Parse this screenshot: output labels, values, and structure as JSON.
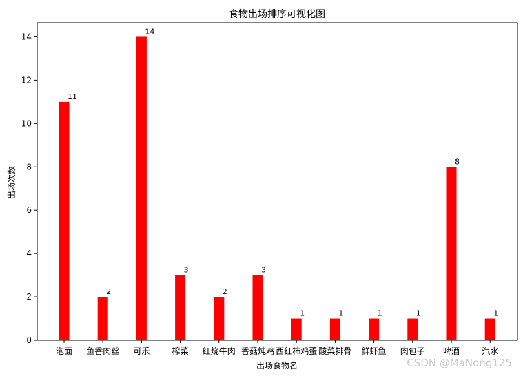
{
  "chart_data": {
    "type": "bar",
    "title": "食物出场排序可视化图",
    "xlabel": "出场食物名",
    "ylabel": "出场次数",
    "categories": [
      "泡面",
      "鱼香肉丝",
      "可乐",
      "榨菜",
      "红烧牛肉",
      "香菇炖鸡",
      "西红柿鸡蛋",
      "酸菜排骨",
      "鲜虾鱼",
      "肉包子",
      "啤酒",
      "汽水"
    ],
    "values": [
      11,
      2,
      14,
      3,
      2,
      3,
      1,
      1,
      1,
      1,
      8,
      1
    ],
    "ylim": [
      0,
      14.65
    ],
    "yticks": [
      0,
      2,
      4,
      6,
      8,
      10,
      12,
      14
    ],
    "bar_color": "#ff0000",
    "grid": false,
    "data_labels": true
  },
  "watermark": "CSDN @MaNong125"
}
